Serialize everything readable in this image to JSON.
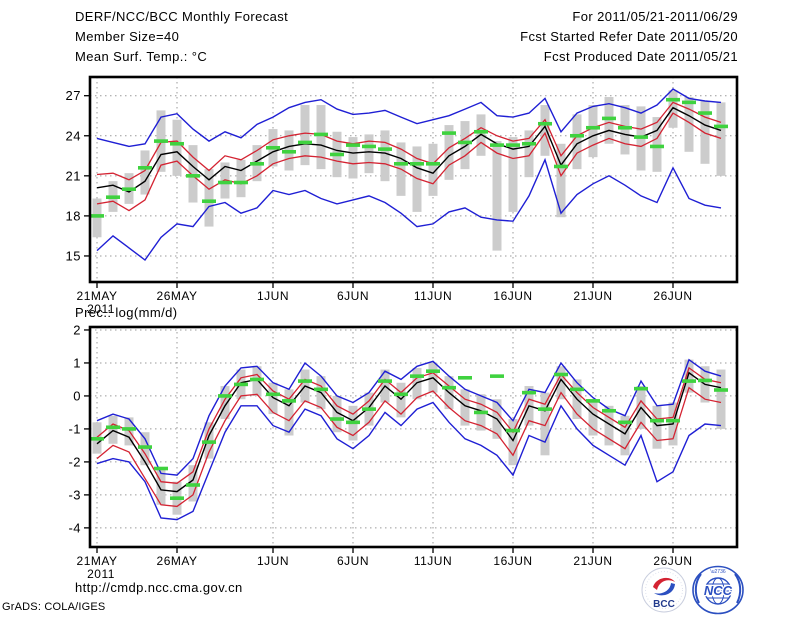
{
  "header": {
    "title": "DERF/NCC/BCC Monthly Forecast",
    "member_size": "Member Size=40",
    "for_range": "For 2011/05/21-2011/06/29",
    "refer_date": "Fcst Started Refer Date 2011/05/20",
    "produced_date": "Fcst Produced Date 2011/05/21"
  },
  "footer": {
    "url": "http://cmdp.ncc.cma.gov.cn",
    "credit": "GrADS: COLA/IGES",
    "logos": [
      {
        "name": "bcc-logo",
        "label": "BCC"
      },
      {
        "name": "ncc-logo",
        "label": "NCC"
      }
    ]
  },
  "colors": {
    "ensemble_minmax": "#1f1fd4",
    "spread_bounds": "#d42332",
    "ensemble_mean": "#000000",
    "observation": "#3fd23f",
    "spread_bars": "#cccccc",
    "grid": "#9a9a9a",
    "frame": "#000000",
    "logo_blue": "#2b4fc0",
    "logo_red": "#d42332"
  },
  "chart_data": [
    {
      "type": "line",
      "title": "Mean Surf. Temp.: °C",
      "n_days": 40,
      "date_range": "2011/05/21-2011/06/29",
      "x_tick_labels": [
        "21MAY",
        "26MAY",
        "1JUN",
        "6JUN",
        "11JUN",
        "16JUN",
        "21JUN",
        "26JUN"
      ],
      "x_tick_days": [
        0,
        5,
        11,
        16,
        21,
        26,
        31,
        36
      ],
      "x_year_label": "2011",
      "yticks": [
        27,
        24,
        21,
        18,
        15
      ],
      "ylim": [
        13.05,
        28.4
      ],
      "series": [
        {
          "name": "ensemble-max",
          "color": "#1f1fd4",
          "width": 1.4,
          "values": [
            23.8,
            23.5,
            23.2,
            23.4,
            25.4,
            25.65,
            24.5,
            23.6,
            24.3,
            23.85,
            24.85,
            25.4,
            26.1,
            26.5,
            26.7,
            26.0,
            25.6,
            25.7,
            25.9,
            25.4,
            24.9,
            25.2,
            25.5,
            26.0,
            26.5,
            25.5,
            25.4,
            25.7,
            26.8,
            24.3,
            25.7,
            26.2,
            26.4,
            26.1,
            25.7,
            26.3,
            27.5,
            26.8,
            26.6,
            26.5
          ]
        },
        {
          "name": "upper-spread",
          "color": "#d42332",
          "width": 1.3,
          "values": [
            21.1,
            21.2,
            20.7,
            21.4,
            23.5,
            23.6,
            22.4,
            21.4,
            22.5,
            22.2,
            22.9,
            23.7,
            24.0,
            24.2,
            24.1,
            23.6,
            23.4,
            23.6,
            23.5,
            23.0,
            22.3,
            21.9,
            23.1,
            23.8,
            24.6,
            24.0,
            23.6,
            23.8,
            25.2,
            22.5,
            24.0,
            24.6,
            25.0,
            24.7,
            24.5,
            25.0,
            26.5,
            26.0,
            25.4,
            25.0
          ]
        },
        {
          "name": "ensemble-mean",
          "color": "#000000",
          "width": 1.4,
          "values": [
            20.1,
            20.3,
            19.8,
            20.6,
            22.6,
            22.8,
            21.7,
            20.7,
            21.7,
            21.4,
            22.1,
            22.8,
            23.2,
            23.4,
            23.3,
            22.9,
            22.7,
            22.8,
            22.7,
            22.3,
            21.6,
            21.2,
            22.5,
            23.2,
            24.1,
            23.4,
            23.0,
            23.2,
            24.7,
            21.8,
            23.4,
            24.0,
            24.4,
            24.1,
            23.9,
            24.4,
            26.1,
            25.5,
            24.8,
            24.4
          ]
        },
        {
          "name": "lower-spread",
          "color": "#d42332",
          "width": 1.3,
          "values": [
            18.9,
            19.1,
            18.4,
            19.2,
            21.8,
            22.1,
            21.0,
            20.0,
            20.7,
            20.4,
            21.0,
            21.9,
            22.3,
            22.5,
            22.4,
            22.1,
            21.9,
            22.0,
            21.9,
            21.5,
            20.8,
            20.4,
            21.8,
            22.5,
            23.5,
            22.7,
            22.3,
            22.5,
            24.2,
            21.0,
            22.7,
            23.3,
            23.8,
            23.4,
            23.2,
            23.8,
            25.7,
            25.0,
            24.2,
            23.8
          ]
        },
        {
          "name": "ensemble-min",
          "color": "#1f1fd4",
          "width": 1.4,
          "values": [
            15.4,
            16.5,
            15.6,
            14.7,
            16.4,
            17.4,
            17.2,
            18.7,
            19.0,
            18.2,
            18.6,
            19.9,
            19.6,
            19.9,
            19.3,
            18.9,
            19.2,
            19.5,
            19.0,
            18.2,
            17.2,
            17.4,
            18.3,
            18.6,
            17.9,
            17.7,
            17.6,
            19.5,
            22.2,
            18.2,
            19.6,
            20.4,
            21.0,
            20.3,
            19.5,
            19.0,
            21.6,
            19.3,
            18.8,
            18.6
          ]
        }
      ],
      "obs": {
        "name": "observation",
        "color": "#3fd23f",
        "values": [
          18.0,
          19.4,
          20.0,
          21.6,
          23.6,
          23.4,
          21.0,
          19.1,
          20.5,
          20.5,
          21.9,
          23.1,
          22.8,
          23.5,
          24.1,
          22.6,
          23.3,
          23.2,
          23.0,
          21.9,
          21.9,
          21.9,
          24.2,
          23.5,
          24.3,
          23.3,
          23.3,
          23.4,
          24.9,
          21.7,
          24.0,
          24.6,
          25.3,
          24.6,
          23.9,
          23.2,
          26.7,
          26.5,
          25.7,
          24.7
        ]
      },
      "bars": {
        "name": "spread-bars",
        "color": "#cccccc",
        "ranges": [
          [
            16.4,
            19.3
          ],
          [
            18.3,
            20.6
          ],
          [
            18.9,
            21.2
          ],
          [
            19.6,
            22.9
          ],
          [
            21.3,
            25.9
          ],
          [
            21.0,
            25.2
          ],
          [
            19.0,
            23.3
          ],
          [
            17.2,
            21.5
          ],
          [
            19.3,
            22.0
          ],
          [
            19.4,
            22.2
          ],
          [
            20.6,
            23.3
          ],
          [
            21.7,
            24.5
          ],
          [
            21.4,
            24.4
          ],
          [
            21.8,
            26.3
          ],
          [
            21.5,
            26.3
          ],
          [
            20.9,
            24.3
          ],
          [
            20.8,
            23.9
          ],
          [
            21.2,
            24.1
          ],
          [
            20.6,
            24.4
          ],
          [
            19.5,
            23.5
          ],
          [
            18.3,
            23.2
          ],
          [
            19.5,
            23.4
          ],
          [
            20.7,
            24.8
          ],
          [
            21.5,
            25.1
          ],
          [
            22.5,
            25.6
          ],
          [
            15.4,
            23.6
          ],
          [
            18.3,
            23.9
          ],
          [
            20.9,
            24.4
          ],
          [
            22.5,
            26.3
          ],
          [
            17.9,
            23.4
          ],
          [
            21.5,
            25.6
          ],
          [
            22.4,
            26.3
          ],
          [
            23.4,
            26.9
          ],
          [
            22.6,
            26.3
          ],
          [
            21.4,
            26.2
          ],
          [
            21.3,
            25.4
          ],
          [
            24.6,
            27.4
          ],
          [
            22.8,
            26.9
          ],
          [
            21.9,
            26.6
          ],
          [
            21.0,
            26.5
          ]
        ]
      }
    },
    {
      "type": "line",
      "title": "Prec.: log(mm/d)",
      "n_days": 40,
      "date_range": "2011/05/21-2011/06/29",
      "x_tick_labels": [
        "21MAY",
        "26MAY",
        "1JUN",
        "6JUN",
        "11JUN",
        "16JUN",
        "21JUN",
        "26JUN"
      ],
      "x_tick_days": [
        0,
        5,
        11,
        16,
        21,
        26,
        31,
        36
      ],
      "x_year_label": "2011",
      "yticks": [
        2,
        1,
        0,
        -1,
        -2,
        -3,
        -4
      ],
      "ylim": [
        -4.58,
        2.09
      ],
      "series": [
        {
          "name": "ensemble-max",
          "color": "#1f1fd4",
          "width": 1.4,
          "values": [
            -0.75,
            -0.55,
            -0.7,
            -1.3,
            -2.35,
            -2.4,
            -1.9,
            -0.6,
            0.3,
            0.85,
            0.9,
            0.4,
            0.2,
            1.0,
            0.6,
            0.0,
            -0.2,
            0.1,
            0.75,
            0.5,
            0.9,
            1.05,
            0.6,
            0.2,
            0.0,
            -0.2,
            -0.75,
            0.2,
            0.1,
            1.0,
            0.4,
            -0.05,
            -0.4,
            -0.6,
            0.45,
            -0.3,
            -0.25,
            1.1,
            0.75,
            0.6
          ]
        },
        {
          "name": "upper-spread",
          "color": "#d42332",
          "width": 1.3,
          "values": [
            -1.25,
            -0.85,
            -1.05,
            -1.75,
            -2.6,
            -2.65,
            -2.3,
            -1.0,
            -0.1,
            0.55,
            0.65,
            0.15,
            -0.1,
            0.5,
            0.3,
            -0.3,
            -0.55,
            -0.15,
            0.5,
            0.1,
            0.55,
            0.7,
            0.3,
            -0.1,
            -0.25,
            -0.5,
            -1.1,
            -0.1,
            -0.25,
            0.65,
            0.1,
            -0.35,
            -0.65,
            -0.95,
            -0.15,
            -0.7,
            -0.65,
            0.85,
            0.5,
            0.4
          ]
        },
        {
          "name": "ensemble-mean",
          "color": "#000000",
          "width": 1.4,
          "values": [
            -1.45,
            -1.05,
            -1.25,
            -2.0,
            -2.85,
            -2.9,
            -2.55,
            -1.2,
            -0.3,
            0.4,
            0.5,
            -0.05,
            -0.3,
            0.3,
            0.1,
            -0.5,
            -0.75,
            -0.35,
            0.3,
            -0.1,
            0.4,
            0.55,
            0.1,
            -0.3,
            -0.45,
            -0.7,
            -1.35,
            -0.3,
            -0.45,
            0.5,
            -0.1,
            -0.55,
            -0.85,
            -1.15,
            -0.35,
            -0.9,
            -0.85,
            0.7,
            0.35,
            0.25
          ]
        },
        {
          "name": "lower-spread",
          "color": "#d42332",
          "width": 1.3,
          "values": [
            -1.9,
            -1.5,
            -1.7,
            -2.5,
            -3.3,
            -3.35,
            -3.0,
            -1.7,
            -0.75,
            0.0,
            0.05,
            -0.5,
            -0.75,
            -0.15,
            -0.35,
            -0.95,
            -1.2,
            -0.8,
            -0.15,
            -0.55,
            -0.05,
            0.15,
            -0.35,
            -0.75,
            -0.9,
            -1.15,
            -1.8,
            -0.75,
            -0.9,
            0.1,
            -0.55,
            -1.0,
            -1.3,
            -1.6,
            -0.8,
            -1.35,
            -1.3,
            0.25,
            -0.1,
            -0.2
          ]
        },
        {
          "name": "ensemble-min",
          "color": "#1f1fd4",
          "width": 1.4,
          "values": [
            -2.05,
            -1.9,
            -2.0,
            -2.6,
            -3.7,
            -3.75,
            -3.5,
            -2.3,
            -1.1,
            -0.3,
            -0.3,
            -0.9,
            -1.1,
            -0.4,
            -0.6,
            -1.3,
            -1.6,
            -1.2,
            -0.5,
            -0.9,
            -0.4,
            -0.2,
            -0.8,
            -1.3,
            -1.5,
            -1.8,
            -2.4,
            -1.2,
            -1.4,
            -0.3,
            -1.0,
            -1.5,
            -1.8,
            -2.1,
            -1.2,
            -2.6,
            -2.3,
            -1.2,
            -0.85,
            -0.9
          ]
        }
      ],
      "obs": {
        "name": "observation",
        "color": "#3fd23f",
        "values": [
          -1.3,
          -0.95,
          -1.0,
          -1.55,
          -2.2,
          -3.1,
          -2.7,
          -1.4,
          0.0,
          0.35,
          0.5,
          0.05,
          -0.15,
          0.45,
          0.2,
          -0.7,
          -0.8,
          -0.4,
          0.45,
          0.05,
          0.6,
          0.75,
          0.25,
          0.55,
          -0.5,
          0.6,
          -1.05,
          0.1,
          -0.4,
          0.65,
          0.2,
          -0.15,
          -0.45,
          -0.8,
          0.22,
          -0.75,
          -0.75,
          0.45,
          0.47,
          0.18
        ]
      },
      "bars": {
        "name": "spread-bars",
        "color": "#cccccc",
        "ranges": [
          [
            -1.75,
            -0.8
          ],
          [
            -1.45,
            -0.6
          ],
          [
            -1.5,
            -0.65
          ],
          [
            -2.1,
            -1.1
          ],
          [
            -3.3,
            -2.2
          ],
          [
            -3.6,
            -2.6
          ],
          [
            -3.2,
            -2.1
          ],
          [
            -1.9,
            -0.8
          ],
          [
            -0.7,
            0.3
          ],
          [
            -0.1,
            0.8
          ],
          [
            0.0,
            0.9
          ],
          [
            -0.55,
            0.4
          ],
          [
            -1.2,
            0.2
          ],
          [
            -0.2,
            0.8
          ],
          [
            -0.4,
            0.6
          ],
          [
            -1.1,
            0.0
          ],
          [
            -1.35,
            -0.3
          ],
          [
            -0.9,
            0.1
          ],
          [
            -0.2,
            0.8
          ],
          [
            -0.65,
            0.4
          ],
          [
            -0.1,
            0.85
          ],
          [
            0.1,
            1.0
          ],
          [
            -0.4,
            0.6
          ],
          [
            -0.9,
            0.2
          ],
          [
            -1.05,
            0.05
          ],
          [
            -1.3,
            -0.1
          ],
          [
            -2.1,
            -0.7
          ],
          [
            -0.9,
            0.3
          ],
          [
            -1.8,
            0.1
          ],
          [
            -0.1,
            0.9
          ],
          [
            -0.7,
            0.5
          ],
          [
            -1.2,
            -0.1
          ],
          [
            -1.5,
            -0.3
          ],
          [
            -1.8,
            -0.6
          ],
          [
            -1.0,
            0.3
          ],
          [
            -1.6,
            -0.3
          ],
          [
            -1.5,
            -0.2
          ],
          [
            0.1,
            1.1
          ],
          [
            -0.2,
            0.9
          ],
          [
            -1.0,
            0.8
          ]
        ]
      }
    }
  ]
}
